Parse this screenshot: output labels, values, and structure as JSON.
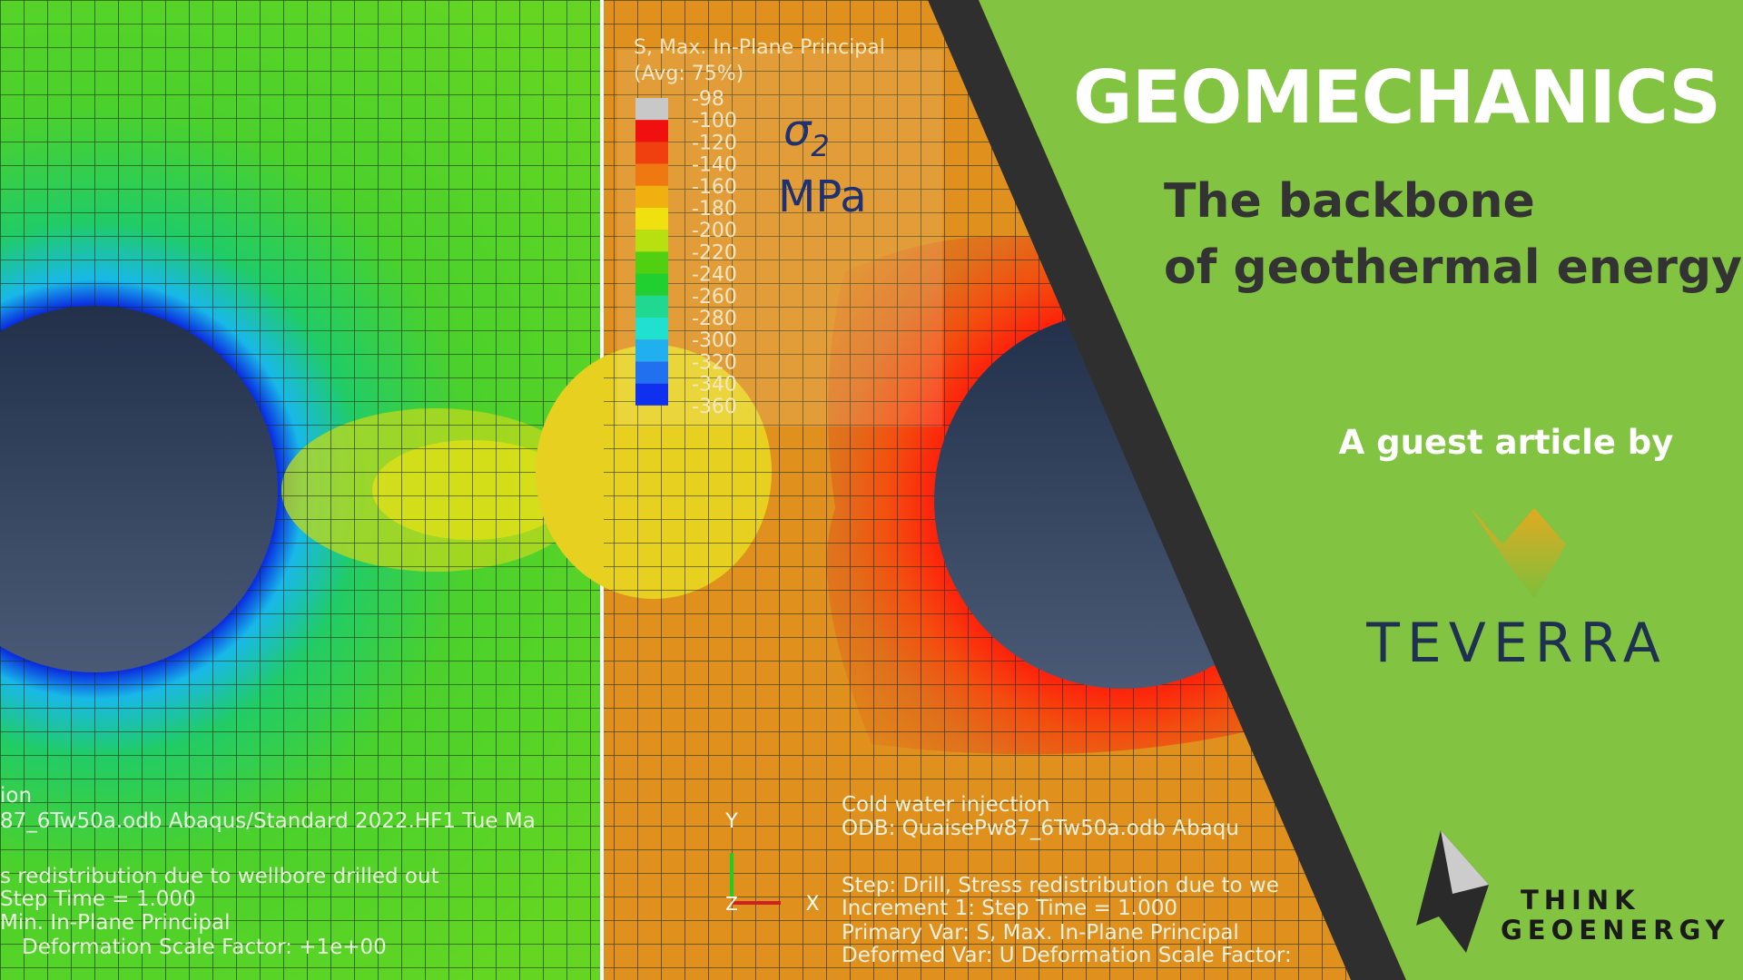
{
  "header": {
    "title": "GEOMECHANICS",
    "subtitle_lines": [
      "The backbone",
      "of geothermal energy"
    ],
    "byline": "A guest article by"
  },
  "logos": {
    "partner": "TEVERRA",
    "publisher_lines": [
      "THINK",
      "GEOENERGY"
    ]
  },
  "simulation": {
    "legend": {
      "title": "S, Max. In-Plane Principal",
      "average": "(Avg: 75%)",
      "values": [
        -98,
        -100,
        -120,
        -140,
        -160,
        -180,
        -200,
        -220,
        -240,
        -260,
        -280,
        -300,
        -320,
        -340,
        -360
      ],
      "symbol": "σ",
      "subscript": "2",
      "unit": "MPa"
    },
    "axes": {
      "y": "Y",
      "x": "X",
      "z": "Z"
    },
    "left_caption": [
      "ion",
      "87_6Tw50a.odb    Abaqus/Standard 2022.HF1    Tue Ma",
      "s redistribution due to wellbore drilled out",
      "Step Time =     1.000",
      "Min. In-Plane Principal",
      "Deformation Scale Factor: +1e+00"
    ],
    "right_caption": [
      "Cold water injection",
      "ODB: QuaisePw87_6Tw50a.odb    Abaqu",
      "Step: Drill, Stress redistribution due to we",
      "Increment     1: Step Time =     1.000",
      "Primary Var: S, Max. In-Plane Principal",
      "Deformed Var: U   Deformation Scale Factor:"
    ]
  }
}
